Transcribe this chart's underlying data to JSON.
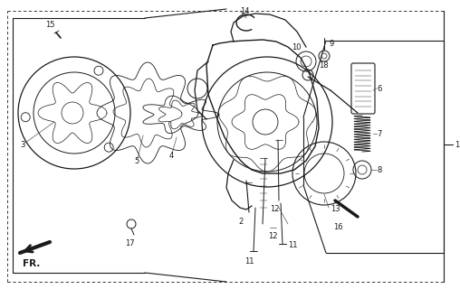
{
  "bg_color": "#ffffff",
  "line_color": "#1a1a1a",
  "figsize": [
    5.08,
    3.2
  ],
  "dpi": 100,
  "label_fontsize": 6.0
}
